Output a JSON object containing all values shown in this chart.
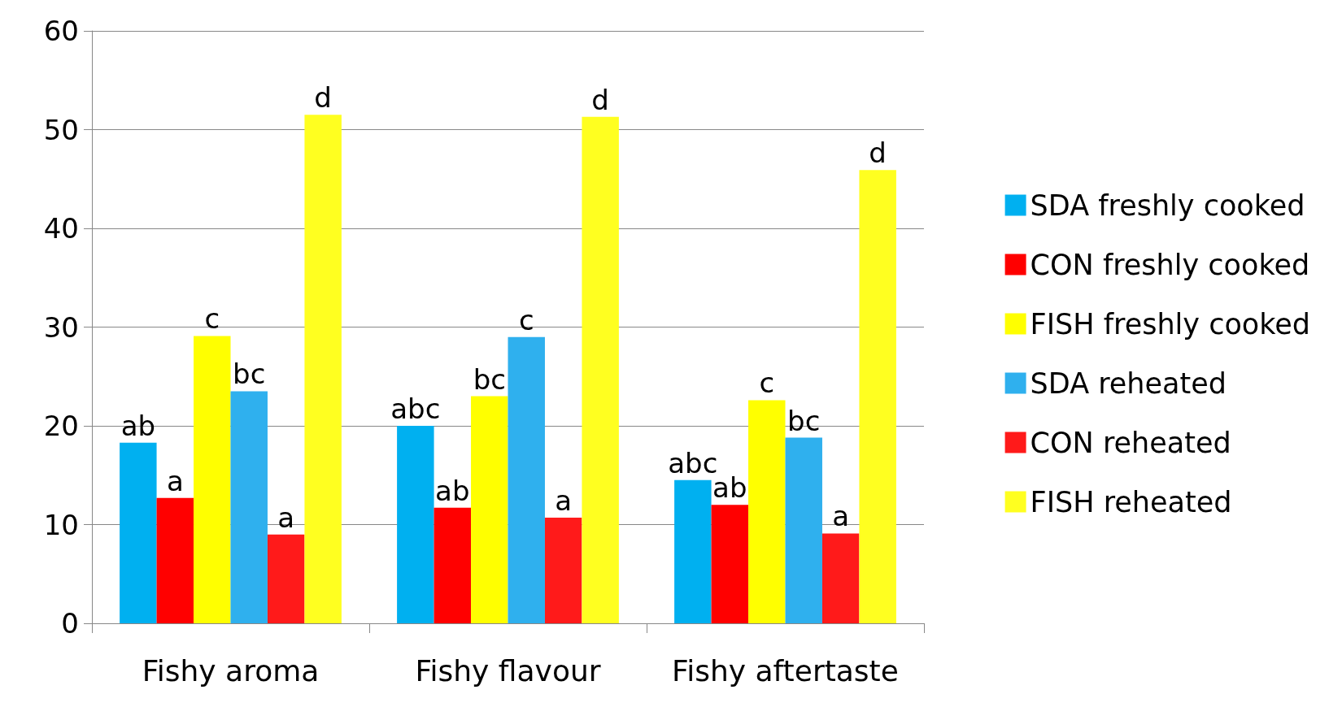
{
  "chart_data": {
    "type": "bar",
    "categories": [
      "Fishy aroma",
      "Fishy flavour",
      "Fishy aftertaste"
    ],
    "series": [
      {
        "name": "SDA freshly cooked",
        "color": "#00b0f0",
        "values": [
          18.3,
          20.0,
          14.5
        ],
        "value_labels": [
          "ab",
          "abc",
          "abc"
        ]
      },
      {
        "name": "CON freshly cooked",
        "color": "#ff0000",
        "values": [
          12.7,
          11.7,
          12.0
        ],
        "value_labels": [
          "a",
          "ab",
          "ab"
        ]
      },
      {
        "name": "FISH freshly cooked",
        "color": "#ffff00",
        "values": [
          29.1,
          23.0,
          22.6
        ],
        "value_labels": [
          "c",
          "bc",
          "c"
        ]
      },
      {
        "name": "SDA reheated",
        "color": "#2fb0ee",
        "values": [
          23.5,
          29.0,
          18.8
        ],
        "value_labels": [
          "bc",
          "c",
          "bc"
        ]
      },
      {
        "name": "CON reheated",
        "color": "#ff1a1a",
        "values": [
          9.0,
          10.7,
          9.1
        ],
        "value_labels": [
          "a",
          "a",
          "a"
        ]
      },
      {
        "name": "FISH reheated",
        "color": "#ffff20",
        "values": [
          51.5,
          51.3,
          45.9
        ],
        "value_labels": [
          "d",
          "d",
          "d"
        ]
      }
    ],
    "ylim": [
      0,
      60
    ],
    "yticks": [
      0,
      10,
      20,
      30,
      40,
      50,
      60
    ],
    "grid": "y",
    "legend": "right"
  }
}
